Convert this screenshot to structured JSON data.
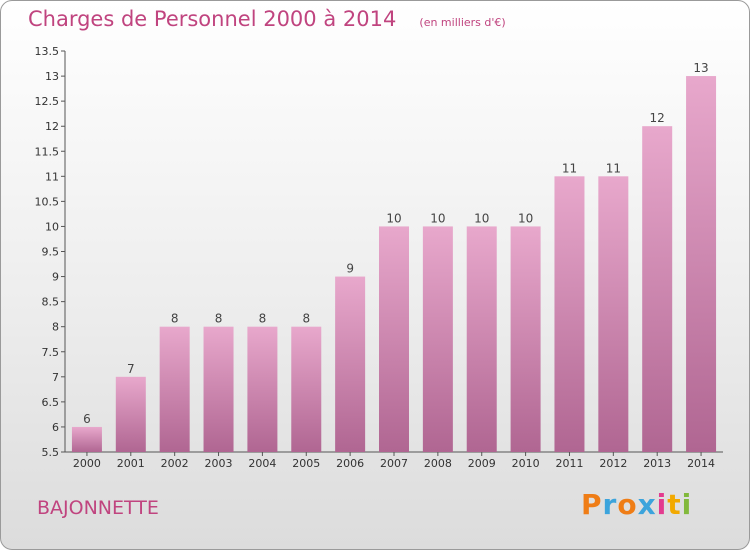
{
  "title": "Charges de Personnel 2000 à 2014",
  "subtitle": "(en milliers d'€)",
  "place": "BAJONNETTE",
  "logo": {
    "letters": [
      "P",
      "r",
      "o",
      "x",
      "i",
      "t",
      "i"
    ],
    "colors": [
      "#ef7d16",
      "#3ca4dc",
      "#ef7d16",
      "#3ca4dc",
      "#e33b8f",
      "#f2a900",
      "#82b93c"
    ]
  },
  "colors": {
    "accent": "#c0447f",
    "bar_top": "#e8a8cc",
    "bar_bottom": "#b06692"
  },
  "chart_data": {
    "type": "bar",
    "categories": [
      "2000",
      "2001",
      "2002",
      "2003",
      "2004",
      "2005",
      "2006",
      "2007",
      "2008",
      "2009",
      "2010",
      "2011",
      "2012",
      "2013",
      "2014"
    ],
    "values": [
      6,
      7,
      8,
      8,
      8,
      8,
      9,
      10,
      10,
      10,
      10,
      11,
      11,
      12,
      13
    ],
    "data_labels": [
      "6",
      "7",
      "8",
      "8",
      "8",
      "8",
      "9",
      "10",
      "10",
      "10",
      "10",
      "11",
      "11",
      "12",
      "13"
    ],
    "ylim": [
      5.5,
      13.5
    ],
    "yticks": [
      5.5,
      6,
      6.5,
      7,
      7.5,
      8,
      8.5,
      9,
      9.5,
      10,
      10.5,
      11,
      11.5,
      12,
      12.5,
      13,
      13.5
    ],
    "ytick_labels": [
      "5.5",
      "6",
      "6.5",
      "7",
      "7.5",
      "8",
      "8.5",
      "9",
      "9.5",
      "10",
      "10.5",
      "11",
      "11.5",
      "12",
      "12.5",
      "13",
      "13.5"
    ],
    "grid": false,
    "legend": "none"
  }
}
